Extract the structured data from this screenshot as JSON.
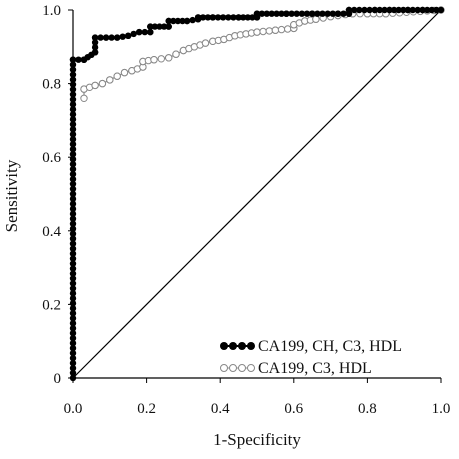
{
  "chart_data": {
    "type": "line",
    "xlabel": "1-Specificity",
    "ylabel": "Sensitivity",
    "xlim": [
      0,
      1
    ],
    "ylim": [
      0,
      1
    ],
    "xticks": [
      "0.0",
      "0.2",
      "0.4",
      "0.6",
      "0.8",
      "1.0"
    ],
    "yticks": [
      "0",
      "0.2",
      "0.4",
      "0.6",
      "0.8",
      "1.0"
    ],
    "grid": false,
    "legend_position": "bottom-right",
    "reference_line": {
      "x": [
        0,
        1
      ],
      "y": [
        0,
        1
      ],
      "color": "#000000"
    },
    "series": [
      {
        "name": "CA199, CH, C3, HDL",
        "marker": "filled-circle",
        "color": "#000000",
        "x": [
          0,
          0,
          0.03,
          0.03,
          0.06,
          0.06,
          0.09,
          0.12,
          0.15,
          0.18,
          0.21,
          0.21,
          0.26,
          0.26,
          0.31,
          0.34,
          0.34,
          0.38,
          0.45,
          0.5,
          0.5,
          0.58,
          0.65,
          0.72,
          0.75,
          0.75,
          0.82,
          0.86,
          0.91,
          0.95,
          1.0
        ],
        "y": [
          0,
          0.865,
          0.865,
          0.865,
          0.885,
          0.925,
          0.925,
          0.925,
          0.93,
          0.94,
          0.94,
          0.955,
          0.955,
          0.97,
          0.97,
          0.975,
          0.98,
          0.98,
          0.98,
          0.98,
          0.99,
          0.99,
          0.99,
          0.99,
          0.99,
          1.0,
          1.0,
          1.0,
          1.0,
          1.0,
          1.0
        ]
      },
      {
        "name": "CA199, C3, HDL",
        "marker": "open-circle",
        "color": "#888888",
        "x": [
          0.03,
          0.03,
          0.06,
          0.08,
          0.1,
          0.12,
          0.14,
          0.16,
          0.19,
          0.19,
          0.22,
          0.26,
          0.28,
          0.3,
          0.33,
          0.36,
          0.38,
          0.41,
          0.44,
          0.47,
          0.5,
          0.55,
          0.6,
          0.6,
          0.63,
          0.66,
          0.72,
          0.76,
          0.8,
          0.85,
          1.0
        ],
        "y": [
          0.76,
          0.785,
          0.795,
          0.8,
          0.81,
          0.82,
          0.83,
          0.835,
          0.845,
          0.86,
          0.865,
          0.87,
          0.88,
          0.89,
          0.9,
          0.91,
          0.915,
          0.92,
          0.93,
          0.935,
          0.94,
          0.945,
          0.95,
          0.96,
          0.97,
          0.975,
          0.985,
          0.99,
          0.99,
          0.99,
          1.0
        ]
      }
    ]
  }
}
